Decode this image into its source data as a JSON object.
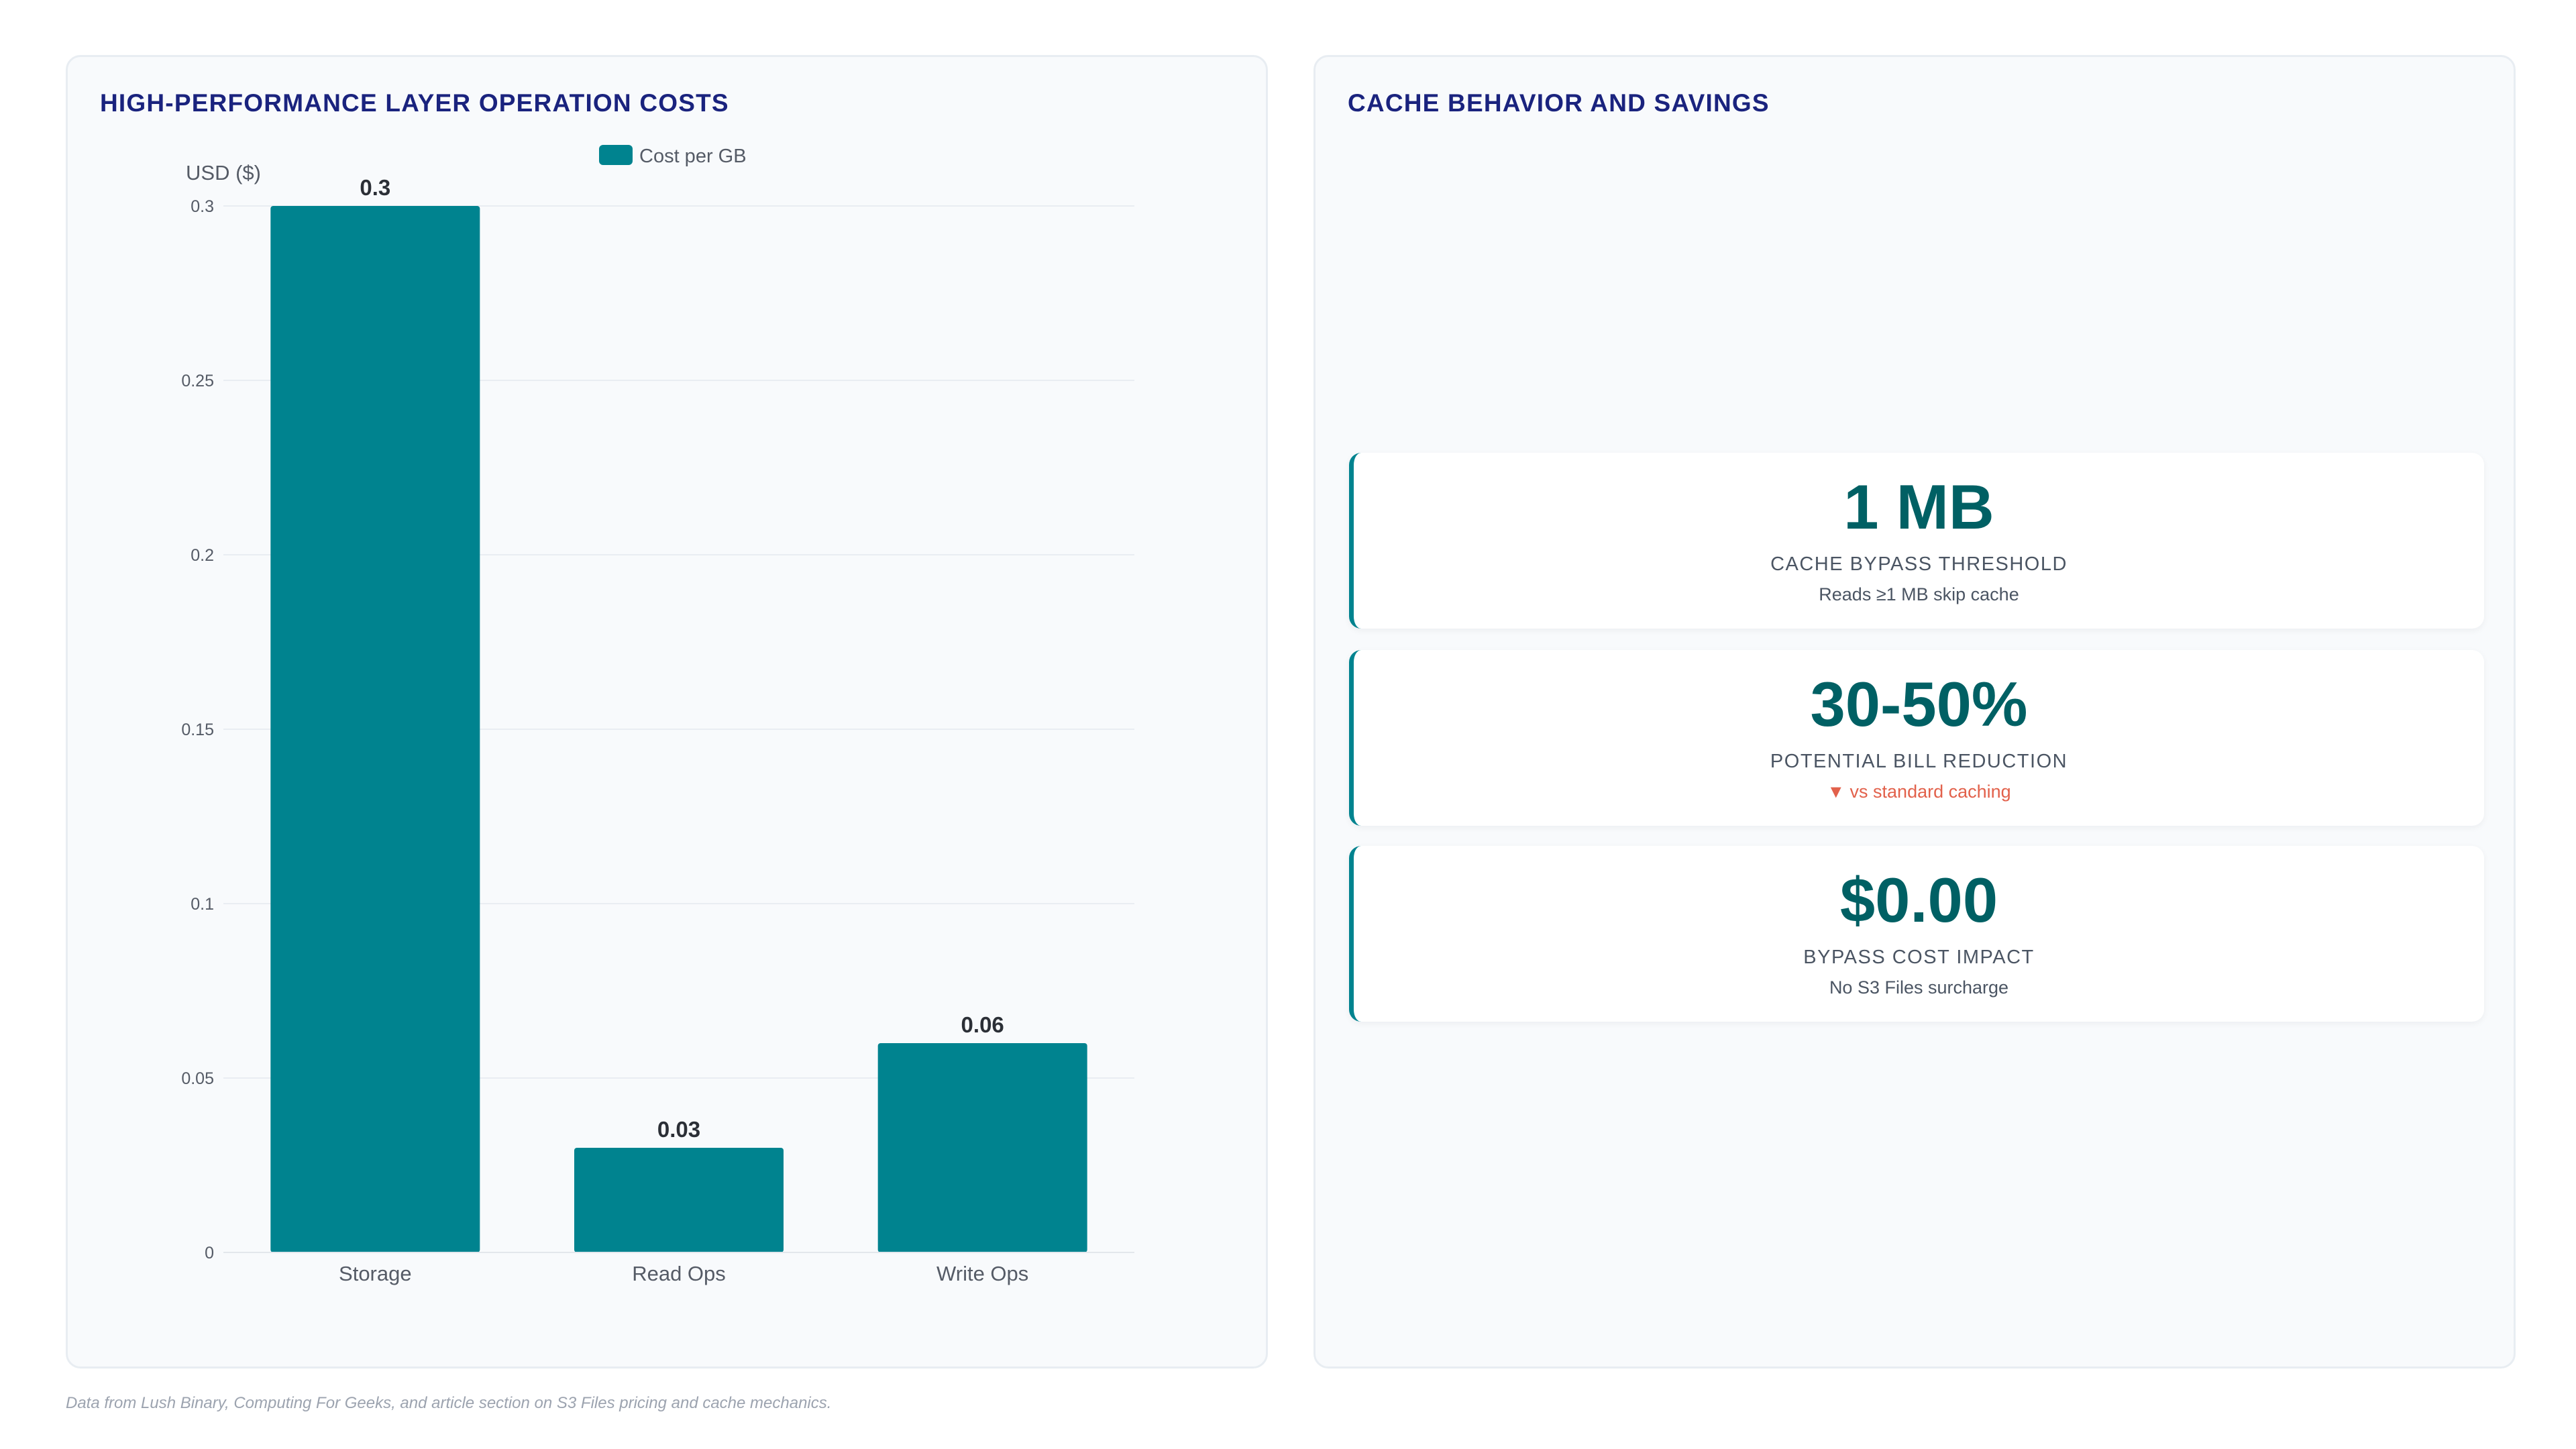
{
  "left_panel": {
    "title": "HIGH-PERFORMANCE LAYER OPERATION COSTS"
  },
  "right_panel": {
    "title": "CACHE BEHAVIOR AND SAVINGS",
    "cards": [
      {
        "value": "1 MB",
        "label": "CACHE BYPASS THRESHOLD",
        "sub": "Reads ≥1 MB skip cache"
      },
      {
        "value": "30-50%",
        "label": "POTENTIAL BILL REDUCTION",
        "sub": "▼ vs standard caching"
      },
      {
        "value": "$0.00",
        "label": "BYPASS COST IMPACT",
        "sub": "No S3 Files surcharge"
      }
    ]
  },
  "colors": {
    "bar": "#00838f",
    "title": "#1a237e",
    "stat_value": "#006064",
    "trend_down": "#e2614b"
  },
  "chart_data": {
    "type": "bar",
    "categories": [
      "Storage",
      "Read Ops",
      "Write Ops"
    ],
    "series": [
      {
        "name": "Cost per GB",
        "values": [
          0.3,
          0.03,
          0.06
        ]
      }
    ],
    "data_labels": [
      "0.3",
      "0.03",
      "0.06"
    ],
    "ylabel": "USD ($)",
    "xlabel": "",
    "ylim": [
      0,
      0.3
    ],
    "yticks": [
      0,
      0.05,
      0.1,
      0.15,
      0.2,
      0.25,
      0.3
    ],
    "ytick_labels": [
      "0",
      "0.05",
      "0.1",
      "0.15",
      "0.2",
      "0.25",
      "0.3"
    ],
    "grid": true,
    "legend_position": "top-center"
  },
  "footnote": "Data from Lush Binary, Computing For Geeks, and article section on S3 Files pricing and cache mechanics."
}
